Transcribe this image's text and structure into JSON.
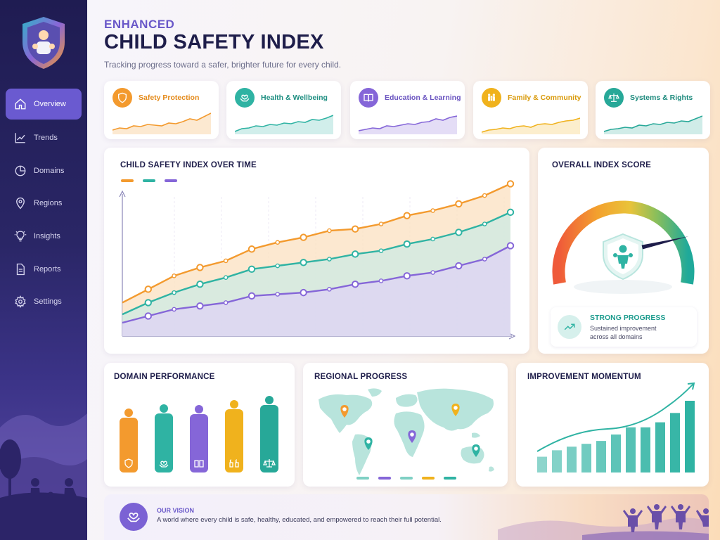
{
  "header": {
    "kicker": "ENHANCED",
    "title": "CHILD SAFETY INDEX",
    "subtitle": "Tracking progress toward a safer, brighter future for every child."
  },
  "sidebar": {
    "items": [
      {
        "label": "Overview",
        "icon": "home-icon",
        "active": true
      },
      {
        "label": "Trends",
        "icon": "trend-icon"
      },
      {
        "label": "Domains",
        "icon": "pie-icon"
      },
      {
        "label": "Regions",
        "icon": "map-pin-icon"
      },
      {
        "label": "Insights",
        "icon": "lightbulb-icon"
      },
      {
        "label": "Reports",
        "icon": "document-icon"
      },
      {
        "label": "Settings",
        "icon": "gear-icon"
      }
    ]
  },
  "domains": [
    {
      "label": "Safety Protection",
      "icon": "shield-icon",
      "color": "#f39a2e",
      "text_color": "#e48a1a"
    },
    {
      "label": "Health & Wellbeing",
      "icon": "heart-hands-icon",
      "color": "#2fb3a3",
      "text_color": "#1f8f82"
    },
    {
      "label": "Education & Learning",
      "icon": "book-icon",
      "color": "#8566d8",
      "text_color": "#6a54c0"
    },
    {
      "label": "Family & Community",
      "icon": "family-icon",
      "color": "#f0b21d",
      "text_color": "#d99a0a"
    },
    {
      "label": "Systems & Rights",
      "icon": "scales-icon",
      "color": "#27a898",
      "text_color": "#1d8a7d"
    }
  ],
  "over_time": {
    "title": "CHILD SAFETY INDEX OVER TIME"
  },
  "overall": {
    "title": "OVERALL INDEX SCORE",
    "gauge_level": 0.82,
    "status_title": "STRONG PROGRESS",
    "status_text_1": "Sustained improvement",
    "status_text_2": "across all domains"
  },
  "domain_performance": {
    "title": "DOMAIN PERFORMANCE"
  },
  "regional": {
    "title": "REGIONAL PROGRESS"
  },
  "momentum": {
    "title": "IMPROVEMENT MOMENTUM"
  },
  "vision": {
    "title": "OUR VISION",
    "text": "A world where every child is safe, healthy, educated, and empowered to reach their full potential."
  },
  "colors": {
    "orange": "#f39a2e",
    "teal": "#2fb3a3",
    "purple": "#8566d8",
    "yellow": "#f0b21d",
    "navy": "#1e1d4a"
  },
  "chart_data": [
    {
      "type": "line",
      "title": "CHILD SAFETY INDEX OVER TIME",
      "x": [
        1,
        2,
        3,
        4,
        5,
        6,
        7,
        8,
        9,
        10,
        11,
        12,
        13,
        14,
        15,
        16
      ],
      "series": [
        {
          "color": "#f39a2e",
          "values": [
            20,
            28,
            36,
            41,
            45,
            52,
            56,
            59,
            63,
            64,
            67,
            72,
            75,
            79,
            84,
            91
          ]
        },
        {
          "color": "#2fb3a3",
          "values": [
            13,
            20,
            26,
            31,
            35,
            40,
            42,
            44,
            46,
            49,
            51,
            55,
            58,
            62,
            67,
            74
          ]
        },
        {
          "color": "#8566d8",
          "values": [
            8,
            12,
            16,
            18,
            20,
            24,
            25,
            26,
            28,
            31,
            33,
            36,
            38,
            42,
            46,
            54
          ]
        }
      ],
      "ylim": [
        0,
        100
      ]
    },
    {
      "type": "bar",
      "title": "DOMAIN PERFORMANCE",
      "categories": [
        "Safety Protection",
        "Health & Wellbeing",
        "Education & Learning",
        "Family & Community",
        "Systems & Rights"
      ],
      "values": [
        78,
        84,
        83,
        90,
        96
      ],
      "ylim": [
        0,
        100
      ]
    },
    {
      "type": "bar",
      "title": "IMPROVEMENT MOMENTUM",
      "categories": [
        "1",
        "2",
        "3",
        "4",
        "5",
        "6",
        "7",
        "8",
        "9",
        "10",
        "11"
      ],
      "values": [
        22,
        31,
        36,
        40,
        44,
        53,
        63,
        63,
        70,
        83,
        100
      ],
      "ylim": [
        0,
        100
      ]
    }
  ]
}
